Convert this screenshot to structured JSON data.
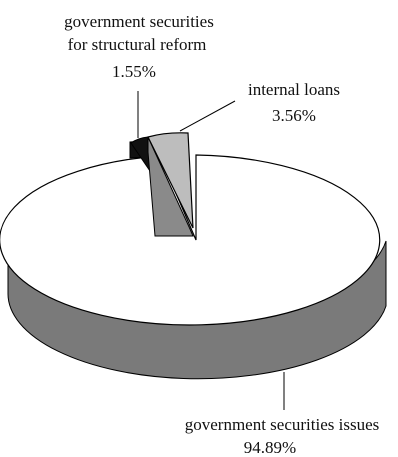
{
  "chart_data": {
    "type": "pie",
    "style": "3d-exploded",
    "title": "",
    "slices": [
      {
        "label_lines": [
          "government securities issues"
        ],
        "value_text": "94.89%",
        "value": 94.89,
        "color": "#ffffff",
        "side_color": "#7a7a7a",
        "exploded": false
      },
      {
        "label_lines": [
          "government securities",
          "for structural reform"
        ],
        "value_text": "1.55%",
        "value": 1.55,
        "color": "#111111",
        "side_color": "#111111",
        "exploded": true
      },
      {
        "label_lines": [
          "internal loans"
        ],
        "value_text": "3.56%",
        "value": 3.56,
        "color": "#bdbdbd",
        "side_color": "#8a8a8a",
        "exploded": true
      }
    ],
    "legend": "none"
  }
}
